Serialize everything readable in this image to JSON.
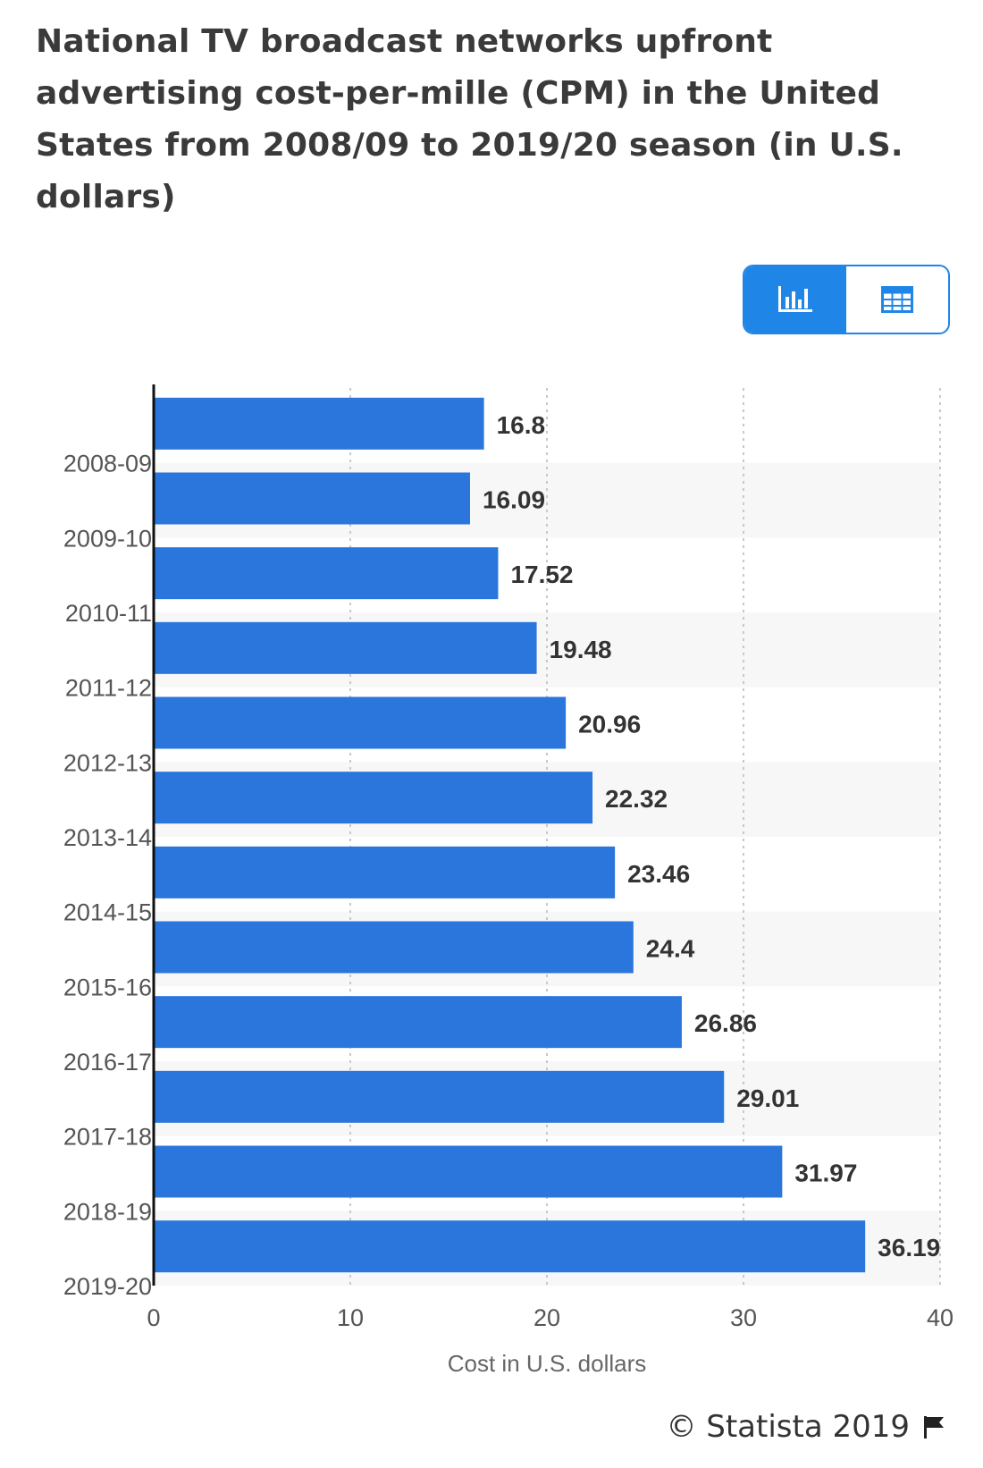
{
  "title": "National TV broadcast networks upfront advertising cost-per-mille (CPM) in the United States from 2008/09 to 2019/20 season (in U.S. dollars)",
  "view_toggle": {
    "chart_icon": "bar-chart-icon",
    "table_icon": "table-icon",
    "active": "chart"
  },
  "footer": {
    "copyright": "© Statista 2019",
    "flag_icon": "flag-icon"
  },
  "colors": {
    "bar": "#2a76dc",
    "accent": "#1f86e8",
    "band": "#f7f7f7",
    "grid": "#c8c8c8",
    "text": "#333333"
  },
  "chart_data": {
    "type": "bar",
    "orientation": "horizontal",
    "categories": [
      "2008-09",
      "2009-10",
      "2010-11",
      "2011-12",
      "2012-13",
      "2013-14",
      "2014-15",
      "2015-16",
      "2016-17",
      "2017-18",
      "2018-19",
      "2019-20"
    ],
    "values": [
      16.8,
      16.09,
      17.52,
      19.48,
      20.96,
      22.32,
      23.46,
      24.4,
      26.86,
      29.01,
      31.97,
      36.19
    ],
    "xlabel": "Cost in U.S. dollars",
    "ylabel": "",
    "xlim": [
      0,
      40
    ],
    "xticks": [
      0,
      10,
      20,
      30,
      40
    ],
    "grid": true,
    "data_labels": true
  }
}
